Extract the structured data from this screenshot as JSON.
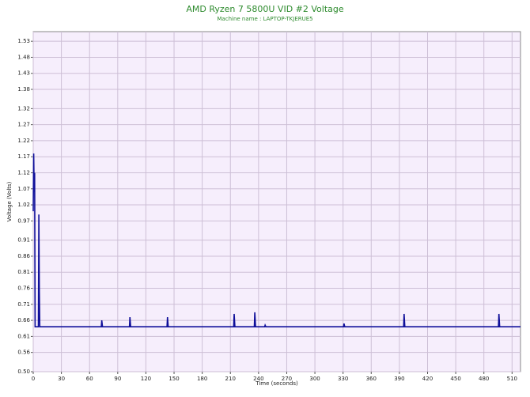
{
  "chart_data": {
    "type": "line",
    "title": "AMD Ryzen 7 5800U VID #2 Voltage",
    "subtitle": "Machine name : LAPTOP-TKJERUE5",
    "x_label": "Time (seconds)",
    "y_label": "Voltage (Volts)",
    "x": [
      0,
      0.5,
      1,
      1.5,
      2,
      2.5,
      5.5,
      6,
      6.5,
      7,
      72.5,
      73,
      73.8,
      102.5,
      103,
      103.8,
      142.5,
      143,
      143.8,
      213.5,
      214,
      214.8,
      235.5,
      236,
      236.8,
      246.5,
      247,
      247.8,
      330.5,
      331,
      331.8,
      394.5,
      395,
      395.8,
      495.5,
      496,
      496.8,
      519
    ],
    "series": [
      {
        "name": "Voltage",
        "color": "#10109a",
        "values": [
          1.0,
          1.18,
          1.06,
          1.12,
          0.64,
          0.64,
          0.64,
          0.99,
          0.75,
          0.64,
          0.64,
          0.66,
          0.64,
          0.64,
          0.67,
          0.64,
          0.64,
          0.67,
          0.64,
          0.64,
          0.68,
          0.64,
          0.64,
          0.685,
          0.64,
          0.64,
          0.645,
          0.64,
          0.64,
          0.65,
          0.64,
          0.64,
          0.68,
          0.64,
          0.64,
          0.68,
          0.64,
          0.64
        ]
      }
    ],
    "xlim": [
      0,
      519
    ],
    "ylim": [
      0.5,
      1.56
    ],
    "xticks": [
      0,
      30,
      60,
      90,
      120,
      150,
      180,
      210,
      240,
      270,
      300,
      330,
      360,
      390,
      420,
      450,
      480,
      510
    ],
    "yticks": [
      {
        "value": 0.5,
        "label": "0.50"
      },
      0.56,
      0.61,
      0.66,
      0.71,
      0.76,
      0.81,
      0.86,
      0.91,
      0.97,
      1.02,
      1.07,
      1.12,
      1.17,
      1.22,
      1.27,
      1.32,
      1.38,
      1.43,
      1.48,
      1.53
    ],
    "grid": true
  }
}
